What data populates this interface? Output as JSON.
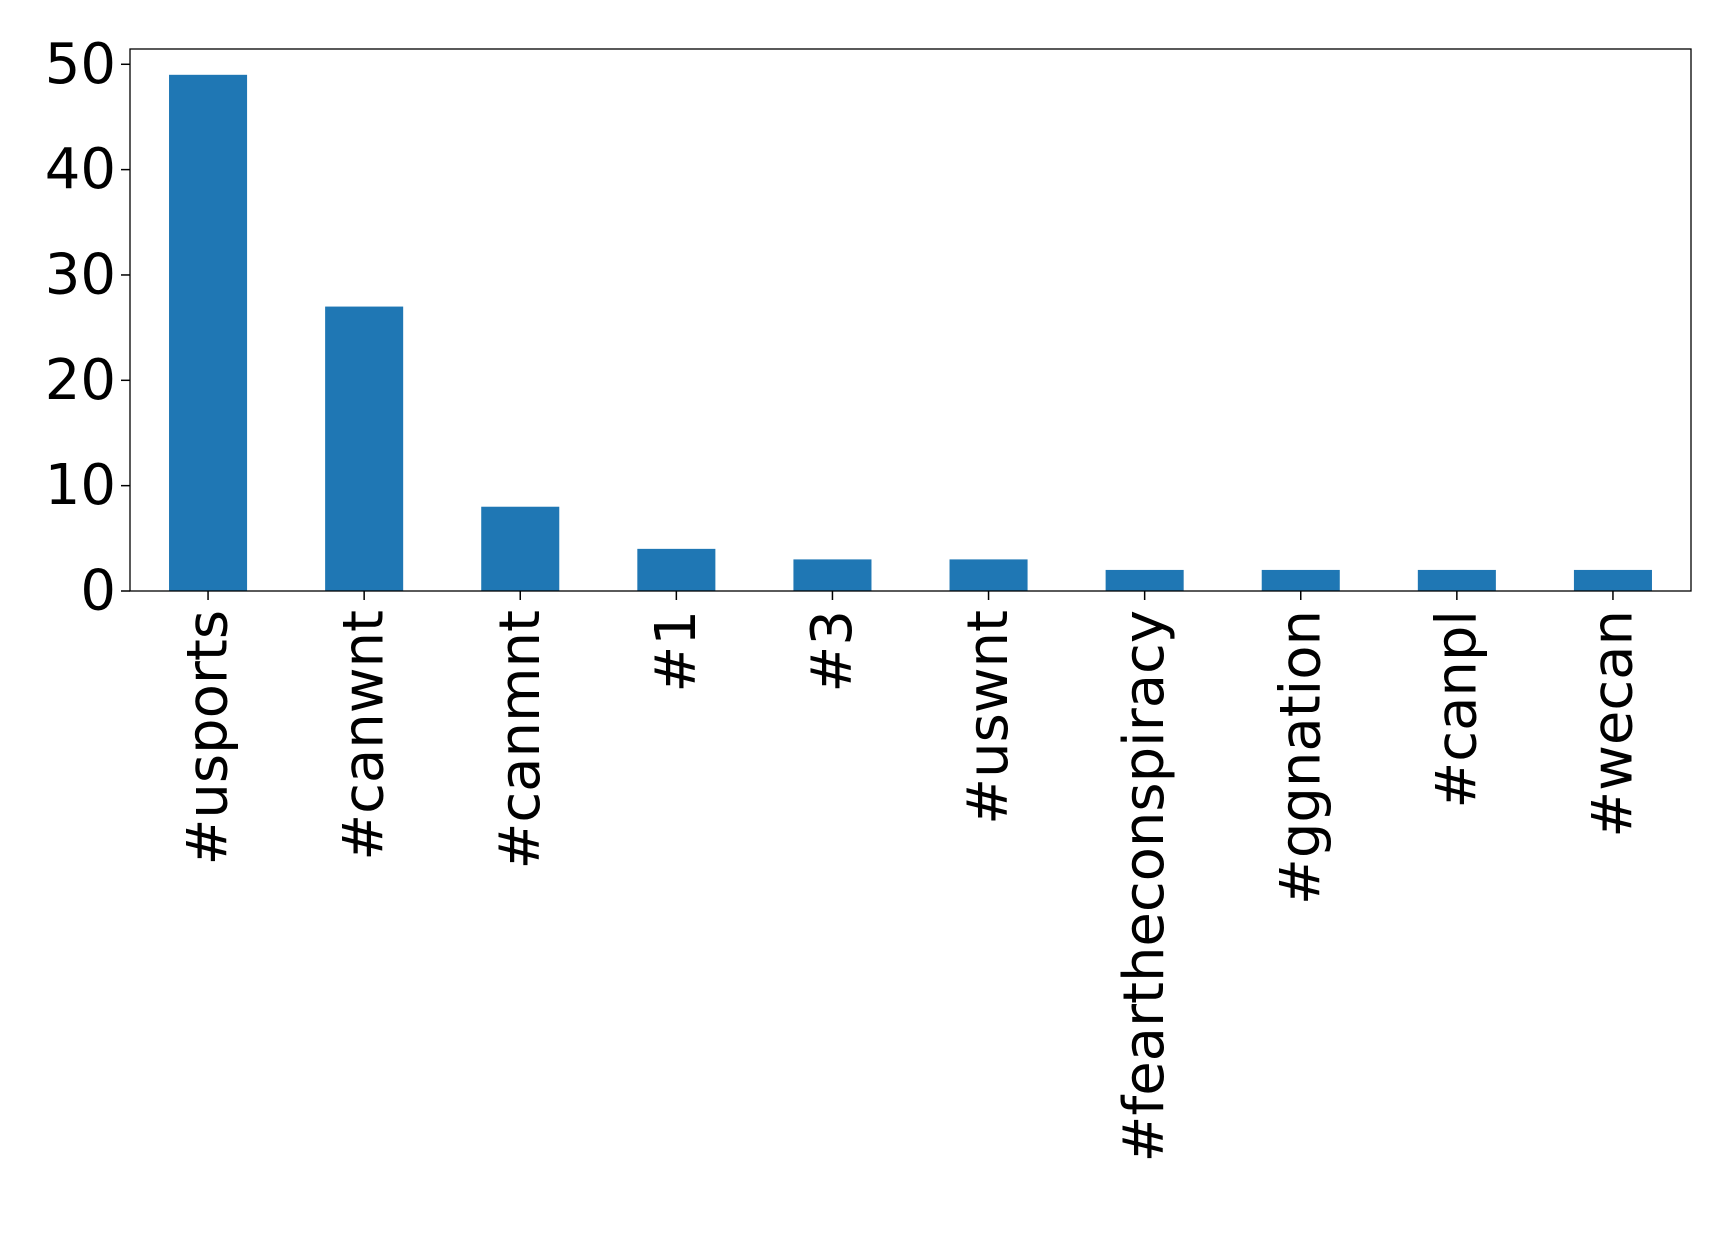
{
  "chart_data": {
    "type": "bar",
    "categories": [
      "#usports",
      "#canwnt",
      "#canmnt",
      "#1",
      "#3",
      "#uswnt",
      "#feartheconspiracy",
      "#ggnation",
      "#canpl",
      "#wecan"
    ],
    "values": [
      49,
      27,
      8,
      4,
      3,
      3,
      2,
      2,
      2,
      2
    ],
    "title": "",
    "xlabel": "",
    "ylabel": "",
    "ylim": [
      0,
      51.45
    ],
    "yticks": [
      0,
      10,
      20,
      30,
      40,
      50
    ],
    "grid": false,
    "legend": "none",
    "bar_color": "#1f77b4",
    "axis_color": "#000000"
  }
}
